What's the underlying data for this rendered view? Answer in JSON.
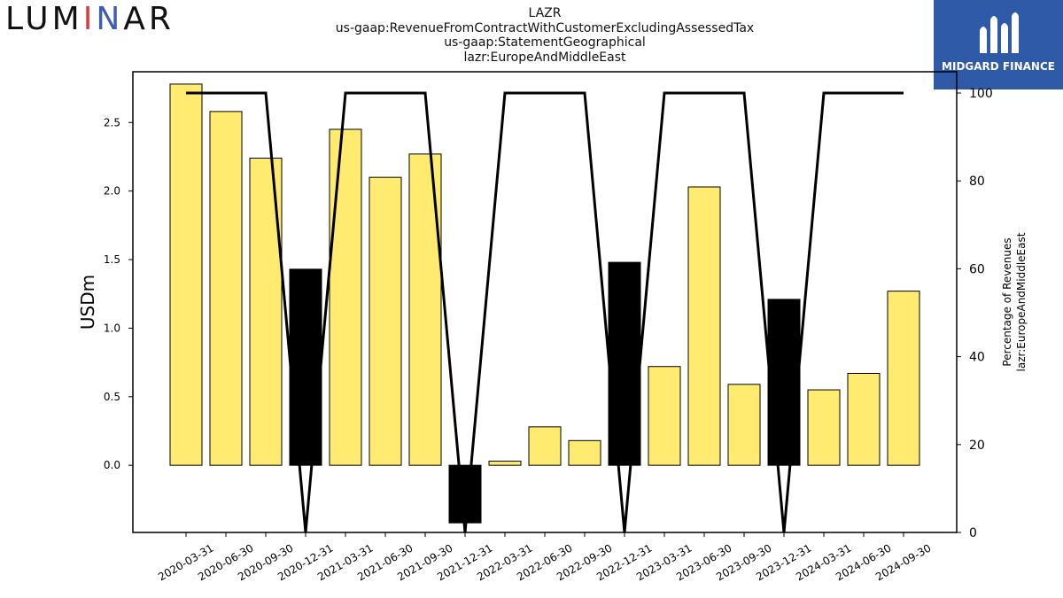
{
  "header": {
    "logo_left": {
      "pre": "LUM",
      "i1": "I",
      "mid": "N",
      "post": "AR"
    },
    "logo_right": {
      "brand": "MIDGARD FINANCE"
    },
    "title_lines": [
      "LAZR",
      "us-gaap:RevenueFromContractWithCustomerExcludingAssessedTax",
      "us-gaap:StatementGeographical",
      "lazr:EuropeAndMiddleEast"
    ]
  },
  "colors": {
    "positive_bar": "#ffeb6f",
    "negative_bar": "#000000",
    "line": "#000000",
    "brand_blue": "#2f5aa8"
  },
  "chart_data": {
    "type": "bar",
    "categories": [
      "2020-03-31",
      "2020-06-30",
      "2020-09-30",
      "2020-12-31",
      "2021-03-31",
      "2021-06-30",
      "2021-09-30",
      "2021-12-31",
      "2022-03-31",
      "2022-06-30",
      "2022-09-30",
      "2022-12-31",
      "2023-03-31",
      "2023-06-30",
      "2023-09-30",
      "2023-12-31",
      "2024-03-31",
      "2024-06-30",
      "2024-09-30"
    ],
    "values": [
      2.78,
      2.58,
      2.24,
      1.43,
      2.45,
      2.1,
      2.27,
      -0.42,
      0.03,
      0.28,
      0.18,
      1.48,
      0.72,
      2.03,
      0.59,
      1.21,
      0.55,
      0.67,
      1.27
    ],
    "highlight": [
      false,
      false,
      false,
      true,
      false,
      false,
      false,
      true,
      false,
      false,
      false,
      true,
      false,
      false,
      false,
      true,
      false,
      false,
      false
    ],
    "ylabel": "USDm",
    "ylim": [
      -0.49,
      2.87
    ],
    "yticks": [
      "0.0",
      "0.5",
      "1.0",
      "1.5",
      "2.0",
      "2.5"
    ],
    "ytick_values": [
      0,
      0.5,
      1.0,
      1.5,
      2.0,
      2.5
    ],
    "secondary": {
      "type": "line",
      "ylabel_lines": [
        "Percentage of Revenues",
        "lazr:EuropeAndMiddleEast"
      ],
      "values": [
        100,
        100,
        100,
        0,
        100,
        100,
        100,
        0,
        100,
        100,
        100,
        0,
        100,
        100,
        100,
        0,
        100,
        100,
        100
      ],
      "ylim": [
        0,
        100
      ],
      "yticks": [
        "0",
        "20",
        "40",
        "60",
        "80",
        "100"
      ],
      "ytick_values": [
        0,
        20,
        40,
        60,
        80,
        100
      ]
    },
    "grid": false
  }
}
